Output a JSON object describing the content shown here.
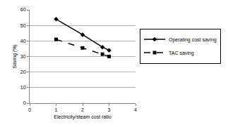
{
  "chart_data": {
    "type": "line",
    "x_label": "Electricity/steam cost ratio",
    "y_label": "Saving (%)",
    "x": [
      1,
      2,
      2.75,
      3
    ],
    "series": [
      {
        "name": "Operating cost saving",
        "color": "#000000",
        "values": [
          54,
          44,
          36,
          34
        ],
        "marker": "diamond",
        "line_style": "solid"
      },
      {
        "name": "TAC saving",
        "color": "#000000",
        "values": [
          41,
          35.5,
          31.5,
          30
        ],
        "marker": "square",
        "line_style": "dash"
      }
    ],
    "xlim": [
      0,
      4
    ],
    "xticks": [
      0,
      1,
      2,
      3,
      4
    ],
    "ylim": [
      0,
      60
    ],
    "yticks": [
      0,
      10,
      20,
      30,
      40,
      50,
      60
    ],
    "grid": true,
    "legend": "right"
  }
}
